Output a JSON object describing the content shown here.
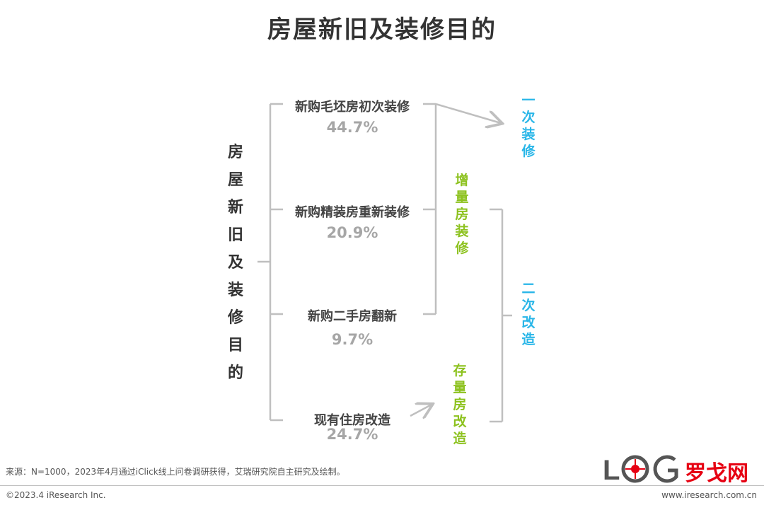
{
  "title": "房屋新旧及装修目的",
  "root_label": [
    "房",
    "屋",
    "新",
    "旧",
    "及",
    "装",
    "修",
    "目",
    "的"
  ],
  "items": [
    {
      "label": "新购毛坯房初次装修",
      "value": "44.7%"
    },
    {
      "label": "新购精装房重新装修",
      "value": "20.9%"
    },
    {
      "label": "新购二手房翻新",
      "value": "9.7%"
    },
    {
      "label": "现有住房改造",
      "value": "24.7%"
    }
  ],
  "groups": {
    "incremental": [
      "增",
      "量",
      "房",
      "装",
      "修"
    ],
    "stock": [
      "存",
      "量",
      "房",
      "改",
      "造"
    ],
    "first_renovation": [
      "一",
      "次",
      "装",
      "修"
    ],
    "second_renovation": [
      "二",
      "次",
      "改",
      "造"
    ]
  },
  "colors": {
    "green": "#8dc21f",
    "blue": "#29b6e8",
    "line": "#bfbfbf",
    "logo_red": "#e60012"
  },
  "footer": {
    "source": "来源：N=1000，2023年4月通过iClick线上问卷调研获得，艾瑞研究院自主研究及绘制。",
    "copyright": "©2023.4 iResearch Inc.",
    "website": "www.iresearch.com.cn"
  },
  "logo": {
    "text": "罗戈网",
    "icon": "log-logo-icon"
  }
}
